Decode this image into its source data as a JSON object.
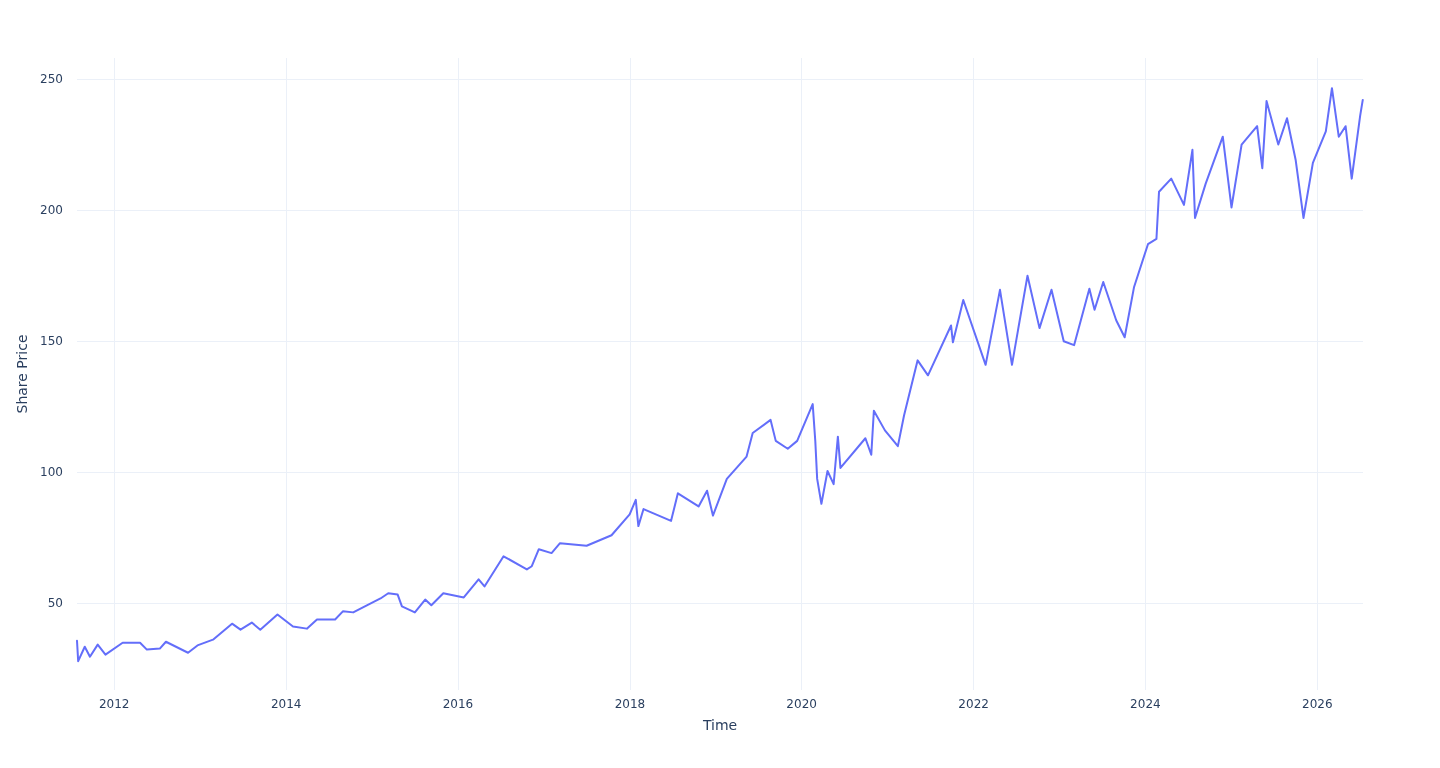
{
  "chart_data": {
    "type": "line",
    "xlabel": "Time",
    "ylabel": "Share Price",
    "color": "#636efa",
    "marker": "none",
    "line_style": "solid",
    "grid": true,
    "xlim": [
      "2011-07-27",
      "2026-07-14"
    ],
    "xticks": [
      "2012",
      "2014",
      "2016",
      "2018",
      "2020",
      "2022",
      "2024",
      "2026"
    ],
    "ylim": [
      17,
      258
    ],
    "yticks": [
      50,
      100,
      150,
      200,
      250
    ],
    "x": [
      "2011-07-27",
      "2011-08-01",
      "2011-08-29",
      "2011-09-20",
      "2011-10-23",
      "2011-11-25",
      "2012-02-06",
      "2012-04-20",
      "2012-05-19",
      "2012-07-13",
      "2012-08-08",
      "2012-11-10",
      "2012-12-20",
      "2013-02-24",
      "2013-05-16",
      "2013-06-21",
      "2013-08-08",
      "2013-09-13",
      "2013-11-25",
      "2014-01-30",
      "2014-03-30",
      "2014-05-12",
      "2014-07-28",
      "2014-08-30",
      "2014-10-13",
      "2014-12-10",
      "2015-02-06",
      "2015-03-11",
      "2015-04-20",
      "2015-05-08",
      "2015-07-02",
      "2015-08-15",
      "2015-09-10",
      "2015-10-31",
      "2016-01-26",
      "2016-03-29",
      "2016-04-23",
      "2016-07-13",
      "2016-10-20",
      "2016-11-10",
      "2016-12-10",
      "2017-02-02",
      "2017-03-10",
      "2017-07-01",
      "2017-10-15",
      "2017-12-31",
      "2018-01-26",
      "2018-02-06",
      "2018-02-28",
      "2018-06-25",
      "2018-07-24",
      "2018-10-20",
      "2018-11-25",
      "2018-12-20",
      "2019-02-17",
      "2019-05-12",
      "2019-06-07",
      "2019-08-22",
      "2019-09-13",
      "2019-11-03",
      "2019-12-13",
      "2020-02-17",
      "2020-02-28",
      "2020-03-07",
      "2020-03-25",
      "2020-04-20",
      "2020-05-16",
      "2020-06-03",
      "2020-06-14",
      "2020-09-28",
      "2020-10-23",
      "2020-11-03",
      "2020-12-20",
      "2021-02-13",
      "2021-03-11",
      "2021-05-08",
      "2021-06-21",
      "2021-09-27",
      "2021-10-05",
      "2021-11-18",
      "2022-02-21",
      "2022-04-23",
      "2022-06-13",
      "2022-08-18",
      "2022-10-08",
      "2022-11-28",
      "2023-01-19",
      "2023-03-04",
      "2023-05-08",
      "2023-05-30",
      "2023-07-06",
      "2023-08-30",
      "2023-10-05",
      "2023-11-14",
      "2024-01-12",
      "2024-02-17",
      "2024-02-28",
      "2024-04-20",
      "2024-06-13",
      "2024-07-19",
      "2024-07-30",
      "2024-09-13",
      "2024-11-25",
      "2025-01-01",
      "2025-02-13",
      "2025-04-20",
      "2025-05-12",
      "2025-05-30",
      "2025-07-19",
      "2025-08-25",
      "2025-10-01",
      "2025-11-03",
      "2025-12-13",
      "2026-02-06",
      "2026-03-04",
      "2026-04-02",
      "2026-05-01",
      "2026-05-27",
      "2026-07-02",
      "2026-07-13"
    ],
    "values": [
      35.8,
      28,
      33.5,
      29.7,
      34.3,
      30.5,
      35,
      35,
      32.4,
      32.8,
      35.4,
      31.2,
      34,
      36.2,
      42.3,
      40,
      42.7,
      40,
      45.8,
      41.2,
      40.4,
      43.9,
      43.9,
      47,
      46.6,
      49.3,
      51.9,
      53.9,
      53.4,
      48.9,
      46.6,
      51.5,
      49.3,
      53.9,
      52.3,
      59.2,
      56.5,
      68,
      63,
      64.2,
      70.7,
      69.2,
      73,
      72,
      76,
      84,
      89.5,
      79.5,
      86,
      81.5,
      92,
      87,
      93,
      83.5,
      97.5,
      106,
      115,
      120,
      112,
      109,
      112,
      126,
      112,
      97.5,
      88,
      100.5,
      95.5,
      113.6,
      101.7,
      113,
      106.7,
      123.5,
      116,
      110,
      121.6,
      142.7,
      137,
      156,
      149.6,
      165.7,
      141,
      169.6,
      141,
      175,
      155,
      169.6,
      150,
      148.5,
      170,
      162,
      172.6,
      158,
      151.5,
      170.7,
      187,
      189,
      207,
      212,
      202,
      223,
      197,
      210,
      228,
      201,
      225,
      232,
      216,
      241.6,
      225,
      235,
      219,
      197,
      218,
      230,
      246.5,
      228,
      232,
      212,
      236,
      242
    ]
  }
}
